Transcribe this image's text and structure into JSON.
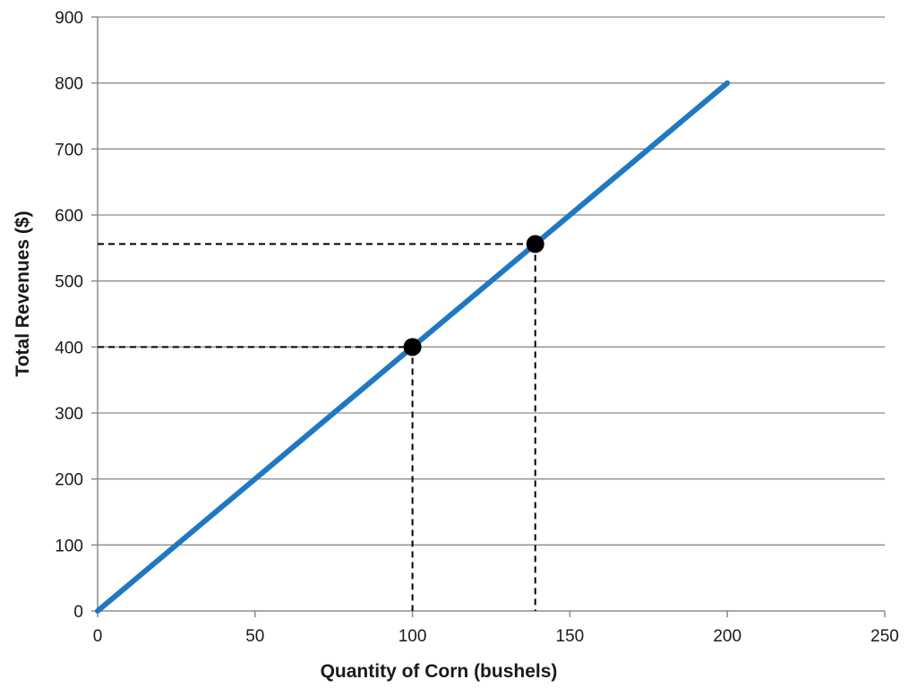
{
  "chart_data": {
    "type": "line",
    "title": "",
    "xlabel": "Quantity of Corn (bushels)",
    "ylabel": "Total Revenues ($)",
    "xlim": [
      0,
      250
    ],
    "ylim": [
      0,
      900
    ],
    "x_ticks": [
      0,
      50,
      100,
      150,
      200,
      250
    ],
    "y_ticks": [
      0,
      100,
      200,
      300,
      400,
      500,
      600,
      700,
      800,
      900
    ],
    "grid": "horizontal",
    "series": [
      {
        "x": [
          0,
          200
        ],
        "y": [
          0,
          800
        ],
        "color": "#1f78c1"
      }
    ],
    "highlighted_points": [
      {
        "x": 100,
        "y": 400,
        "color": "#000000"
      },
      {
        "x": 139,
        "y": 556,
        "color": "#000000"
      }
    ],
    "reference_lines": "dashed lines from each highlighted point to both axes"
  }
}
